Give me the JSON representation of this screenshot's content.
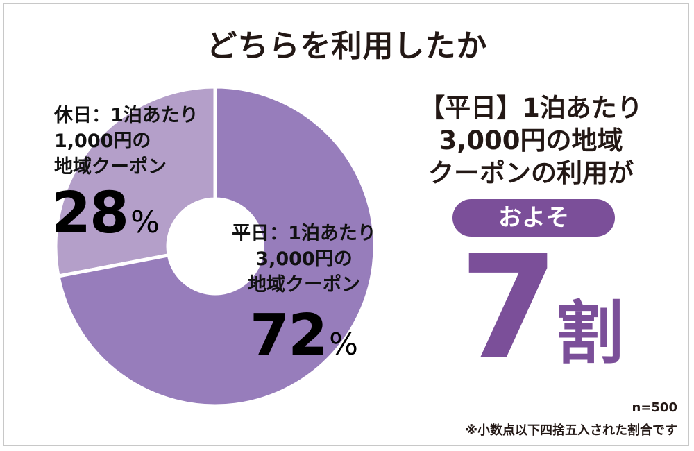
{
  "title": "どちらを利用したか",
  "chart_data": {
    "type": "pie",
    "donut": true,
    "categories": [
      "休日：1泊あたり1,000円の地域クーポン",
      "平日：1泊あたり3,000円の地域クーポン"
    ],
    "values": [
      28,
      72
    ],
    "unit": "%",
    "colors": [
      "#b49fc9",
      "#977dbb"
    ],
    "labels": [
      {
        "lines": [
          "休日：1泊あたり",
          "1,000円の",
          "地域クーポン"
        ],
        "value": "28",
        "sign": "%"
      },
      {
        "lines": [
          "平日：1泊あたり",
          "3,000円の",
          "地域クーポン"
        ],
        "value": "72",
        "sign": "%"
      }
    ]
  },
  "summary": {
    "lines": [
      "【平日】1泊あたり",
      "3,000円の地域",
      "クーポンの利用が"
    ],
    "badge": "およそ",
    "figure": "7",
    "figure_unit": "割",
    "accent_color": "#7b4f99"
  },
  "notes": {
    "sample": "n=500",
    "rounding": "※小数点以下四捨五入された割合です"
  }
}
